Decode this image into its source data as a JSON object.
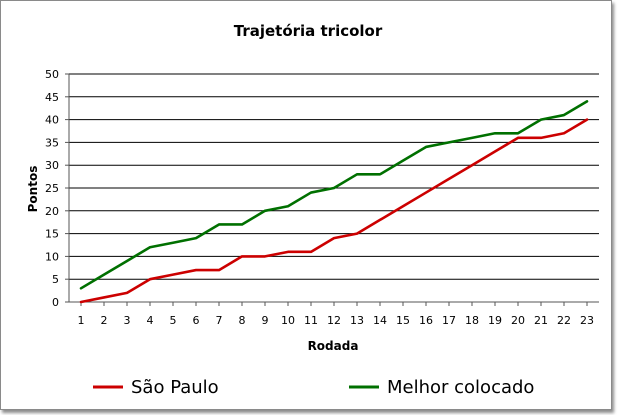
{
  "chart_data": {
    "type": "line",
    "title": "Trajetória tricolor",
    "xlabel": "Rodada",
    "ylabel": "Pontos",
    "x": [
      1,
      2,
      3,
      4,
      5,
      6,
      7,
      8,
      9,
      10,
      11,
      12,
      13,
      14,
      15,
      16,
      17,
      18,
      19,
      20,
      21,
      22,
      23
    ],
    "ylim": [
      0,
      50
    ],
    "yticks": [
      0,
      5,
      10,
      15,
      20,
      25,
      30,
      35,
      40,
      45,
      50
    ],
    "grid": true,
    "legend": "bottom",
    "series": [
      {
        "name": "São Paulo",
        "color": "#cc0000",
        "values": [
          0,
          1,
          2,
          5,
          6,
          7,
          7,
          10,
          10,
          11,
          11,
          14,
          15,
          18,
          21,
          24,
          27,
          30,
          33,
          36,
          36,
          37,
          40
        ]
      },
      {
        "name": "Melhor colocado",
        "color": "#007000",
        "values": [
          3,
          6,
          9,
          12,
          13,
          14,
          17,
          17,
          20,
          21,
          24,
          25,
          28,
          28,
          31,
          34,
          35,
          36,
          37,
          37,
          40,
          41,
          44
        ]
      }
    ]
  }
}
